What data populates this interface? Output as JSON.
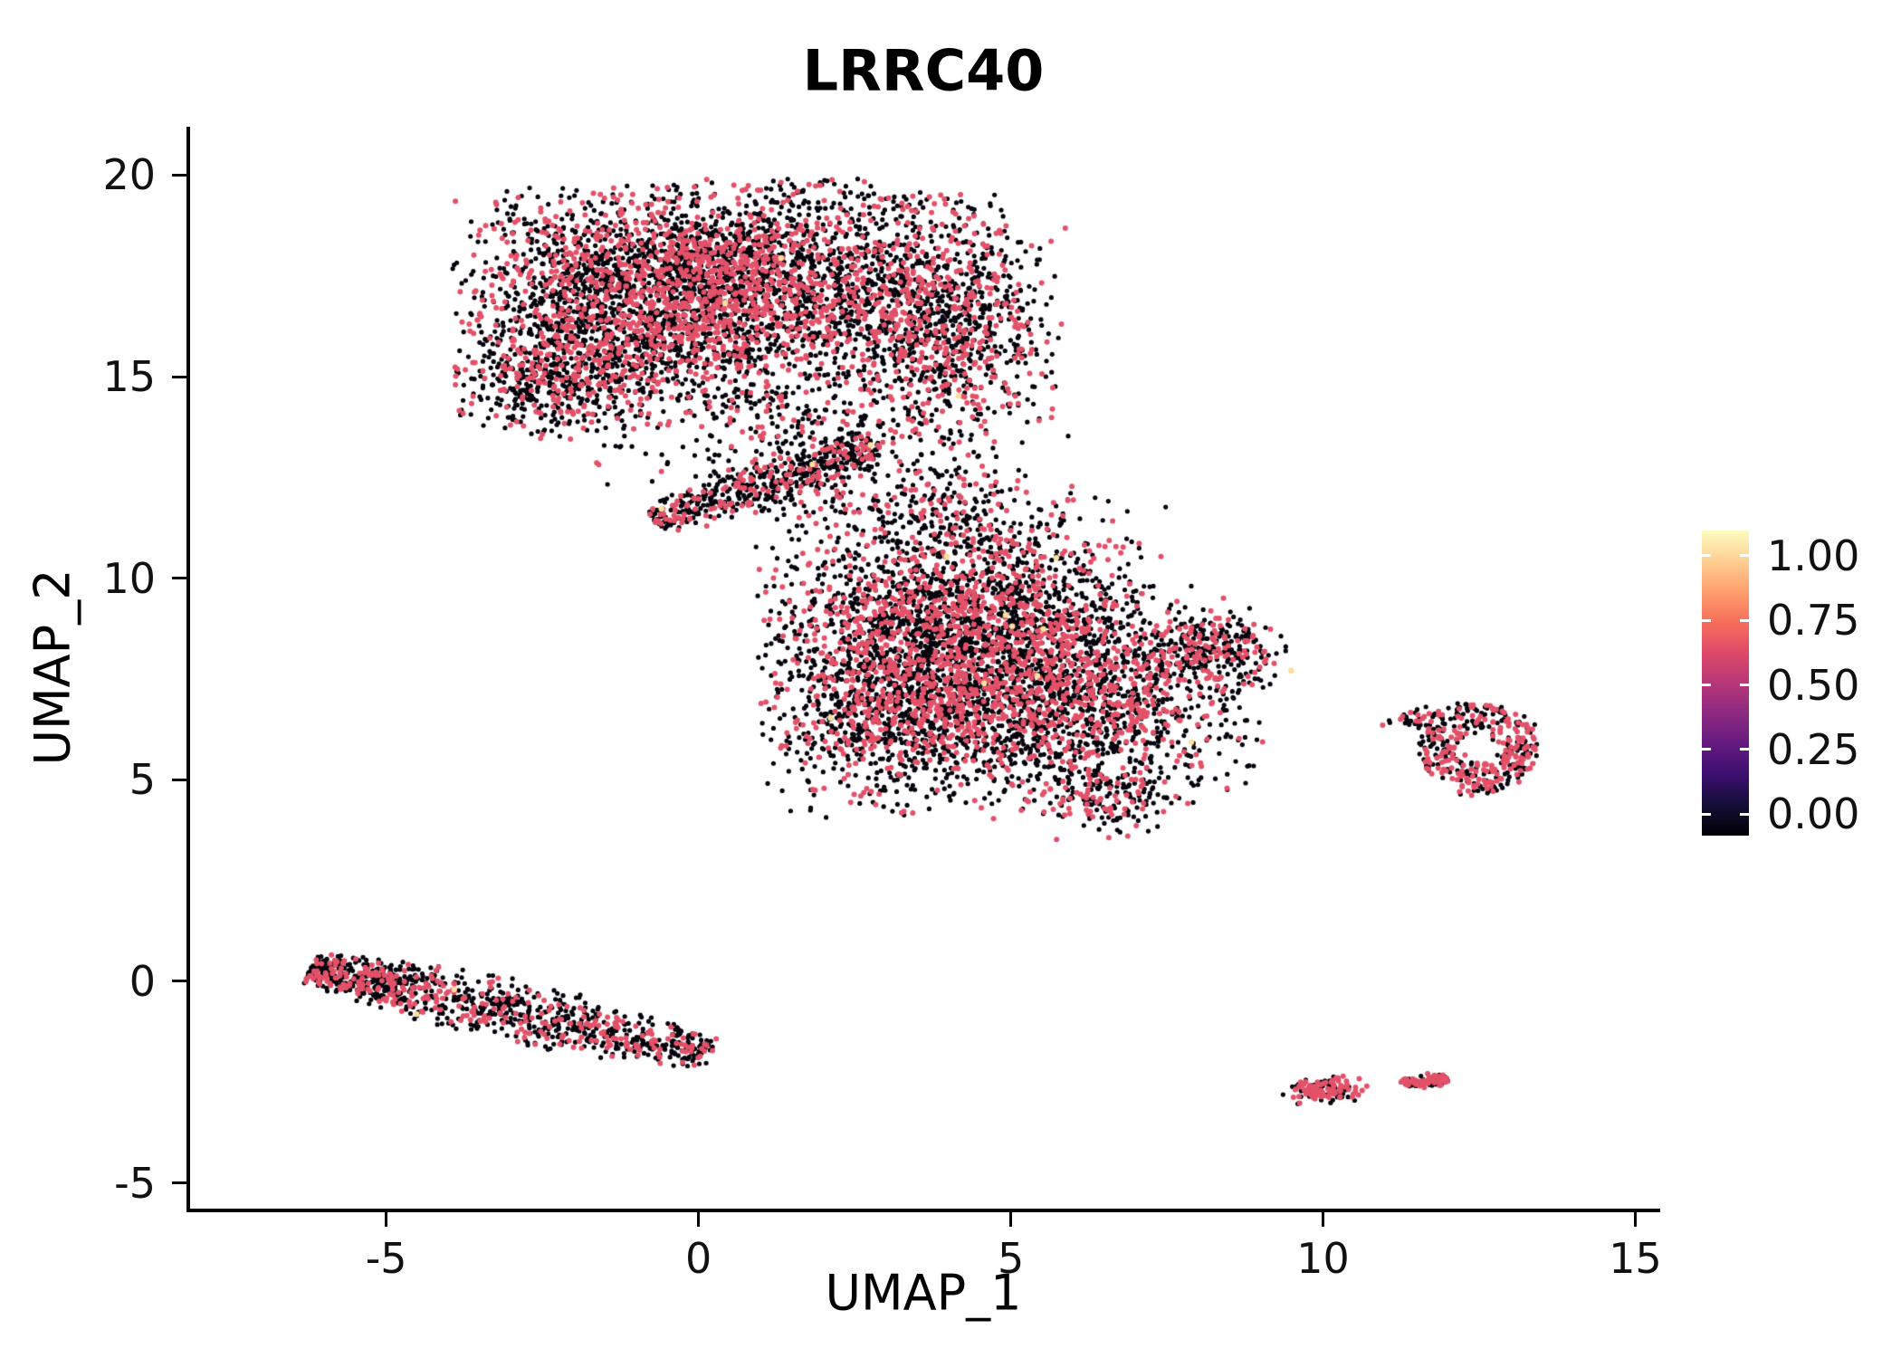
{
  "chart_data": {
    "type": "scatter",
    "title": "LRRC40",
    "xlabel": "UMAP_1",
    "ylabel": "UMAP_2",
    "xlim": [
      -8.14,
      15.34
    ],
    "ylim": [
      -5.64,
      21.2
    ],
    "x_ticks": [
      -5,
      0,
      5,
      10,
      15
    ],
    "y_ticks": [
      -5,
      0,
      5,
      10,
      15,
      20
    ],
    "grid": "off",
    "legend_position": "right",
    "panel_background": "#FFFFFF",
    "point": {
      "radius_low": 2.6,
      "radius_mid": 3.0,
      "radius_high": 3.2,
      "color_low": "#06040C",
      "color_mid": "#E35169",
      "color_high": "#FBDF9C",
      "frac_high": 0.0015
    },
    "colorbar": {
      "ticks": [
        "1.00",
        "0.75",
        "0.50",
        "0.25",
        "0.00"
      ],
      "tick_fractions_from_top": [
        0.083,
        0.295,
        0.506,
        0.718,
        0.929
      ],
      "gradient_bottom_to_top": [
        "#000004",
        "#140E36",
        "#3B0F70",
        "#641A80",
        "#8C2981",
        "#B73779",
        "#DE4968",
        "#F76F5C",
        "#FE9F6D",
        "#FECF92",
        "#FCFDBF"
      ]
    },
    "clusters": [
      {
        "name": "upper-blob-core",
        "shape": "gauss",
        "cx": -1.0,
        "cy": 17.0,
        "sx": 1.35,
        "sy": 1.25,
        "n": 2200,
        "frac": 0.34
      },
      {
        "name": "upper-blob-mid",
        "shape": "gauss",
        "cx": 1.5,
        "cy": 17.4,
        "sx": 1.3,
        "sy": 1.15,
        "n": 1500,
        "frac": 0.34
      },
      {
        "name": "upper-blob-right",
        "shape": "gauss",
        "cx": 3.9,
        "cy": 16.3,
        "sx": 0.9,
        "sy": 1.5,
        "n": 1100,
        "frac": 0.32
      },
      {
        "name": "upper-blob-lower-left",
        "shape": "gauss",
        "cx": -2.3,
        "cy": 14.9,
        "sx": 0.8,
        "sy": 0.75,
        "n": 500,
        "frac": 0.3,
        "cut": 2.0
      },
      {
        "name": "upper-blob-fringe",
        "shape": "gauss",
        "cx": 1.2,
        "cy": 14.0,
        "sx": 1.3,
        "sy": 0.9,
        "n": 320,
        "frac": 0.3
      },
      {
        "name": "neck-streak",
        "shape": "line",
        "x1": -0.7,
        "y1": 11.4,
        "x2": 2.9,
        "y2": 13.3,
        "th": 0.35,
        "n": 520,
        "frac": 0.3
      },
      {
        "name": "neck-scatter",
        "shape": "gauss",
        "cx": 3.6,
        "cy": 11.9,
        "sx": 1.1,
        "sy": 0.8,
        "n": 240,
        "frac": 0.28
      },
      {
        "name": "mid-blob-core",
        "shape": "gauss",
        "cx": 4.2,
        "cy": 8.8,
        "sx": 1.5,
        "sy": 1.5,
        "n": 2500,
        "frac": 0.34
      },
      {
        "name": "mid-blob-right",
        "shape": "gauss",
        "cx": 6.2,
        "cy": 7.0,
        "sx": 1.3,
        "sy": 1.3,
        "n": 1500,
        "frac": 0.34
      },
      {
        "name": "mid-blob-left",
        "shape": "gauss",
        "cx": 3.2,
        "cy": 6.6,
        "sx": 1.0,
        "sy": 1.2,
        "n": 900,
        "frac": 0.32
      },
      {
        "name": "mid-blob-tail",
        "shape": "gauss",
        "cx": 8.3,
        "cy": 8.2,
        "sx": 0.55,
        "sy": 0.45,
        "n": 260,
        "frac": 0.3
      },
      {
        "name": "mid-blob-tip",
        "shape": "gauss",
        "cx": 6.6,
        "cy": 4.5,
        "sx": 0.5,
        "sy": 0.45,
        "n": 150,
        "frac": 0.3
      },
      {
        "name": "lower-left-stripe",
        "shape": "line",
        "x1": -6.2,
        "y1": 0.35,
        "x2": 0.2,
        "y2": -1.8,
        "th": 0.38,
        "n": 1050,
        "frac": 0.3,
        "bias": 1.25
      },
      {
        "name": "right-ring",
        "shape": "ring",
        "cx": 12.5,
        "cy": 5.8,
        "r_in": 0.33,
        "r_out": 1.0,
        "ex": 0.95,
        "ey": 1.15,
        "n": 400,
        "frac": 0.45
      },
      {
        "name": "right-ring-appendage",
        "shape": "gauss",
        "cx": 11.5,
        "cy": 6.5,
        "sx": 0.25,
        "sy": 0.15,
        "n": 40,
        "frac": 0.4
      },
      {
        "name": "bottom-small-left",
        "shape": "gauss",
        "cx": 10.0,
        "cy": -2.68,
        "sx": 0.3,
        "sy": 0.17,
        "n": 140,
        "frac": 0.55
      },
      {
        "name": "bottom-small-right",
        "shape": "line",
        "x1": 11.25,
        "y1": -2.52,
        "x2": 12.0,
        "y2": -2.42,
        "th": 0.09,
        "n": 110,
        "frac": 0.55
      }
    ],
    "outliers": [
      {
        "x": 10.7,
        "y": -2.6,
        "c": "mid"
      },
      {
        "x": 6.75,
        "y": 3.7,
        "c": "low"
      },
      {
        "x": 9.0,
        "y": 8.2,
        "c": "low"
      }
    ]
  }
}
